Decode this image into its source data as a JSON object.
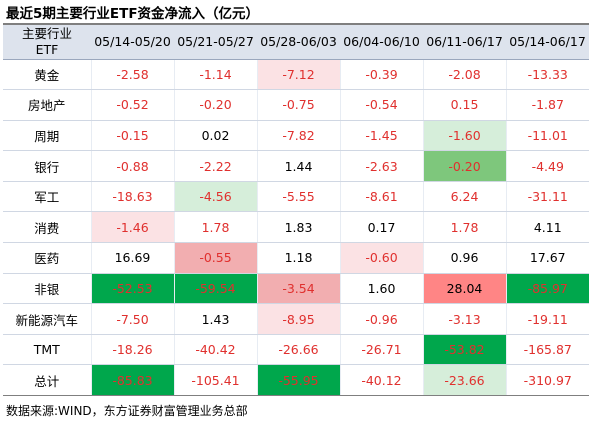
{
  "title": "最近5期主要行业ETF资金净流入（亿元）",
  "header": {
    "name_line1": "主要行业",
    "name_line2": "ETF",
    "periods": [
      "05/14-05/20",
      "05/21-05/27",
      "05/28-06/03",
      "06/04-06/10",
      "06/11-06/17",
      "05/14-06/17"
    ]
  },
  "colors": {
    "negative_text": "#e0302e",
    "positive_text": "#000000",
    "dark_green": "#00a74c",
    "mid_green": "#7ec77c",
    "light_green": "#d6eeda",
    "dark_red": "#ff8585",
    "mid_red": "#f2aeb0",
    "light_red": "#fbe2e4"
  },
  "rows": [
    {
      "name": "黄金",
      "cells": [
        {
          "v": "-2.58",
          "neg": true,
          "bg": ""
        },
        {
          "v": "-1.14",
          "neg": true,
          "bg": ""
        },
        {
          "v": "-7.12",
          "neg": true,
          "bg": "light_red"
        },
        {
          "v": "-0.39",
          "neg": true,
          "bg": ""
        },
        {
          "v": "-2.08",
          "neg": true,
          "bg": ""
        },
        {
          "v": "-13.33",
          "neg": true,
          "bg": ""
        }
      ]
    },
    {
      "name": "房地产",
      "cells": [
        {
          "v": "-0.52",
          "neg": true,
          "bg": ""
        },
        {
          "v": "-0.20",
          "neg": true,
          "bg": ""
        },
        {
          "v": "-0.75",
          "neg": true,
          "bg": ""
        },
        {
          "v": "-0.54",
          "neg": true,
          "bg": ""
        },
        {
          "v": "0.15",
          "neg": true,
          "bg": ""
        },
        {
          "v": "-1.87",
          "neg": true,
          "bg": ""
        }
      ]
    },
    {
      "name": "周期",
      "cells": [
        {
          "v": "-0.15",
          "neg": true,
          "bg": ""
        },
        {
          "v": "0.02",
          "neg": false,
          "bg": ""
        },
        {
          "v": "-7.82",
          "neg": true,
          "bg": ""
        },
        {
          "v": "-1.45",
          "neg": true,
          "bg": ""
        },
        {
          "v": "-1.60",
          "neg": true,
          "bg": "light_green"
        },
        {
          "v": "-11.01",
          "neg": true,
          "bg": ""
        }
      ]
    },
    {
      "name": "银行",
      "cells": [
        {
          "v": "-0.88",
          "neg": true,
          "bg": ""
        },
        {
          "v": "-2.22",
          "neg": true,
          "bg": ""
        },
        {
          "v": "1.44",
          "neg": false,
          "bg": ""
        },
        {
          "v": "-2.63",
          "neg": true,
          "bg": ""
        },
        {
          "v": "-0.20",
          "neg": true,
          "bg": "mid_green"
        },
        {
          "v": "-4.49",
          "neg": true,
          "bg": ""
        }
      ]
    },
    {
      "name": "军工",
      "cells": [
        {
          "v": "-18.63",
          "neg": true,
          "bg": ""
        },
        {
          "v": "-4.56",
          "neg": true,
          "bg": "light_green"
        },
        {
          "v": "-5.55",
          "neg": true,
          "bg": ""
        },
        {
          "v": "-8.61",
          "neg": true,
          "bg": ""
        },
        {
          "v": "6.24",
          "neg": true,
          "bg": ""
        },
        {
          "v": "-31.11",
          "neg": true,
          "bg": ""
        }
      ]
    },
    {
      "name": "消费",
      "cells": [
        {
          "v": "-1.46",
          "neg": true,
          "bg": "light_red"
        },
        {
          "v": "1.78",
          "neg": true,
          "bg": ""
        },
        {
          "v": "1.83",
          "neg": false,
          "bg": ""
        },
        {
          "v": "0.17",
          "neg": false,
          "bg": ""
        },
        {
          "v": "1.78",
          "neg": true,
          "bg": ""
        },
        {
          "v": "4.11",
          "neg": false,
          "bg": ""
        }
      ]
    },
    {
      "name": "医药",
      "cells": [
        {
          "v": "16.69",
          "neg": false,
          "bg": ""
        },
        {
          "v": "-0.55",
          "neg": true,
          "bg": "mid_red"
        },
        {
          "v": "1.18",
          "neg": false,
          "bg": ""
        },
        {
          "v": "-0.60",
          "neg": true,
          "bg": "light_red"
        },
        {
          "v": "0.96",
          "neg": false,
          "bg": ""
        },
        {
          "v": "17.67",
          "neg": false,
          "bg": ""
        }
      ]
    },
    {
      "name": "非银",
      "cells": [
        {
          "v": "-52.53",
          "neg": true,
          "bg": "dark_green"
        },
        {
          "v": "-59.54",
          "neg": true,
          "bg": "dark_green"
        },
        {
          "v": "-3.54",
          "neg": true,
          "bg": "mid_red"
        },
        {
          "v": "1.60",
          "neg": false,
          "bg": ""
        },
        {
          "v": "28.04",
          "neg": false,
          "bg": "dark_red"
        },
        {
          "v": "-85.97",
          "neg": true,
          "bg": "dark_green"
        }
      ]
    },
    {
      "name": "新能源汽车",
      "cells": [
        {
          "v": "-7.50",
          "neg": true,
          "bg": ""
        },
        {
          "v": "1.43",
          "neg": false,
          "bg": ""
        },
        {
          "v": "-8.95",
          "neg": true,
          "bg": "light_red"
        },
        {
          "v": "-0.96",
          "neg": true,
          "bg": ""
        },
        {
          "v": "-3.13",
          "neg": true,
          "bg": ""
        },
        {
          "v": "-19.11",
          "neg": true,
          "bg": ""
        }
      ]
    },
    {
      "name": "TMT",
      "cells": [
        {
          "v": "-18.26",
          "neg": true,
          "bg": ""
        },
        {
          "v": "-40.42",
          "neg": true,
          "bg": ""
        },
        {
          "v": "-26.66",
          "neg": true,
          "bg": ""
        },
        {
          "v": "-26.71",
          "neg": true,
          "bg": ""
        },
        {
          "v": "-53.82",
          "neg": true,
          "bg": "dark_green"
        },
        {
          "v": "-165.87",
          "neg": true,
          "bg": ""
        }
      ]
    },
    {
      "name": "总计",
      "cells": [
        {
          "v": "-85.83",
          "neg": true,
          "bg": "dark_green"
        },
        {
          "v": "-105.41",
          "neg": true,
          "bg": ""
        },
        {
          "v": "-55.95",
          "neg": true,
          "bg": "dark_green"
        },
        {
          "v": "-40.12",
          "neg": true,
          "bg": ""
        },
        {
          "v": "-23.66",
          "neg": true,
          "bg": "light_green"
        },
        {
          "v": "-310.97",
          "neg": true,
          "bg": ""
        }
      ]
    }
  ],
  "source_note": "数据来源:WIND，东方证券财富管理业务总部"
}
